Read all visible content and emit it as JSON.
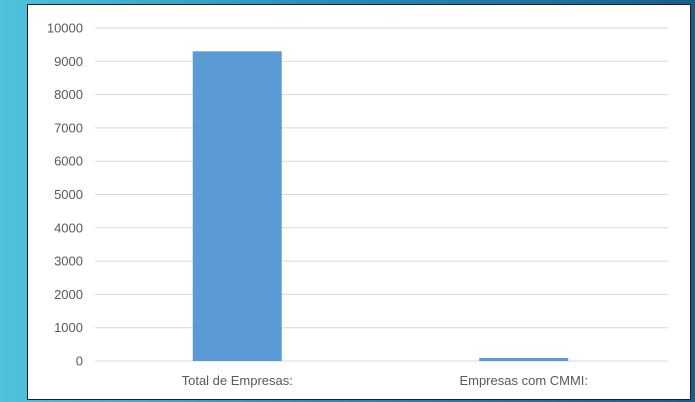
{
  "chart_data": {
    "type": "bar",
    "categories": [
      "Total de Empresas:",
      "Empresas com CMMI:"
    ],
    "values": [
      9300,
      90
    ],
    "title": "",
    "xlabel": "",
    "ylabel": "",
    "ylim": [
      0,
      10000
    ],
    "yticks": [
      0,
      1000,
      2000,
      3000,
      4000,
      5000,
      6000,
      7000,
      8000,
      9000,
      10000
    ],
    "grid": true,
    "legend": "none",
    "bar_color": "#5b9bd5",
    "grid_color": "#d9d9d9"
  }
}
